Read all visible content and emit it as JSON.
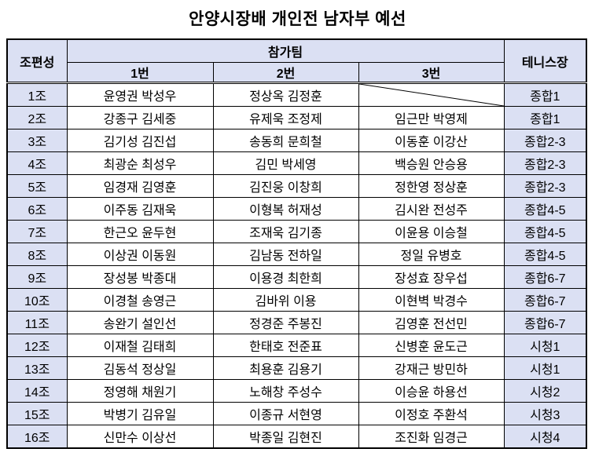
{
  "title": "안양시장배 개인전 남자부 예선",
  "colors": {
    "header_bg": "#dbe0f3",
    "border": "#000000",
    "text": "#000000"
  },
  "table": {
    "headers": {
      "group": "조편성",
      "teams": "참가팀",
      "team_cols": [
        "1번",
        "2번",
        "3번"
      ],
      "court": "테니스장"
    },
    "rows": [
      {
        "group": "1조",
        "t1": "윤영권 박성우",
        "t2": "정상옥 김정훈",
        "t3": "",
        "t3_empty": true,
        "court": "종합1"
      },
      {
        "group": "2조",
        "t1": "강종구 김세중",
        "t2": "유제욱 조정제",
        "t3": "임근만 박영제",
        "t3_empty": false,
        "court": "종합1"
      },
      {
        "group": "3조",
        "t1": "김기성 김진섭",
        "t2": "송동희 문희철",
        "t3": "이동훈 이강산",
        "t3_empty": false,
        "court": "종합2-3"
      },
      {
        "group": "4조",
        "t1": "최광순 최성우",
        "t2": "김민 박세영",
        "t3": "백승원 안승용",
        "t3_empty": false,
        "court": "종합2-3"
      },
      {
        "group": "5조",
        "t1": "임경재 김영훈",
        "t2": "김진웅 이창희",
        "t3": "정한영 정상훈",
        "t3_empty": false,
        "court": "종합2-3"
      },
      {
        "group": "6조",
        "t1": "이주동 김재욱",
        "t2": "이형복 허재성",
        "t3": "김시완 전성주",
        "t3_empty": false,
        "court": "종합4-5"
      },
      {
        "group": "7조",
        "t1": "한근오 윤두현",
        "t2": "조재욱 김기종",
        "t3": "이윤용 이승철",
        "t3_empty": false,
        "court": "종합4-5"
      },
      {
        "group": "8조",
        "t1": "이상권 이동원",
        "t2": "김남동 전하일",
        "t3": "정일 유병호",
        "t3_empty": false,
        "court": "종합4-5"
      },
      {
        "group": "9조",
        "t1": "장성봉 박종대",
        "t2": "이용경 최한희",
        "t3": "장성효 장우섭",
        "t3_empty": false,
        "court": "종합6-7"
      },
      {
        "group": "10조",
        "t1": "이경철 송영근",
        "t2": "김바위 이용",
        "t3": "이현벽 박경수",
        "t3_empty": false,
        "court": "종합6-7"
      },
      {
        "group": "11조",
        "t1": "송완기 설인선",
        "t2": "정경준 주봉진",
        "t3": "김영훈 전선민",
        "t3_empty": false,
        "court": "종합6-7"
      },
      {
        "group": "12조",
        "t1": "이재철 김태희",
        "t2": "한태호 전준표",
        "t3": "신병훈 윤도근",
        "t3_empty": false,
        "court": "시청1"
      },
      {
        "group": "13조",
        "t1": "김동석 정상일",
        "t2": "최용훈 김용기",
        "t3": "강재근 방민하",
        "t3_empty": false,
        "court": "시청1"
      },
      {
        "group": "14조",
        "t1": "정영해 채원기",
        "t2": "노해창 주성수",
        "t3": "이승윤 하용선",
        "t3_empty": false,
        "court": "시청2"
      },
      {
        "group": "15조",
        "t1": "박병기 김유일",
        "t2": "이종규 서현영",
        "t3": "이정호 주환석",
        "t3_empty": false,
        "court": "시청3"
      },
      {
        "group": "16조",
        "t1": "신만수 이상선",
        "t2": "박종일 김현진",
        "t3": "조진화 임경근",
        "t3_empty": false,
        "court": "시청4"
      }
    ]
  }
}
